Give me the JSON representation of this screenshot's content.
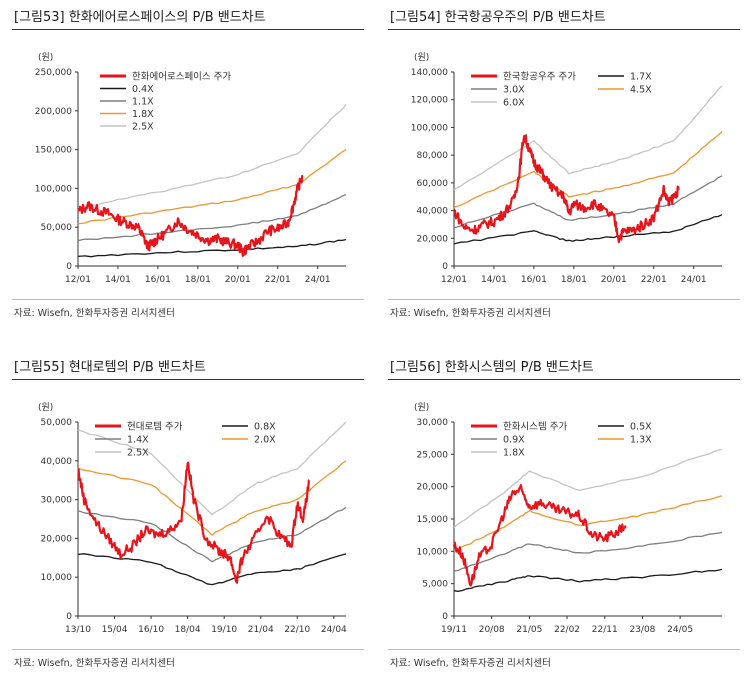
{
  "panels": [
    {
      "title": "[그림53]  한화에어로스페이스의 P/B 밴드차트",
      "source": "자료: Wisefn, 한화투자증권 리서치센터",
      "unit": "(원)"
    },
    {
      "title": "[그림54]  한국항공우주의 P/B 밴드차트",
      "source": "자료: Wisefn, 한화투자증권 리서치센터",
      "unit": "(원)"
    },
    {
      "title": "[그림55]  현대로템의 P/B 밴드차트",
      "source": "자료: Wisefn, 한화투자증권 리서치센터",
      "unit": "(원)"
    },
    {
      "title": "[그림56]  한화시스템의 P/B 밴드차트",
      "source": "자료: Wisefn, 한화투자증권 리서치센터",
      "unit": "(원)"
    }
  ],
  "colors": {
    "price": "#e8141b",
    "band_dark": "#1a1a1a",
    "band_mid": "#7f7f7f",
    "band_orange": "#f0962d",
    "band_light": "#c4c4c4"
  },
  "chart_data": [
    {
      "type": "line",
      "title": "[그림53]  한화에어로스페이스의 P/B 밴드차트",
      "ylabel": "(원)",
      "x_range": [
        "2012-01",
        "2025-06"
      ],
      "x_ticks": [
        "12/01",
        "14/01",
        "16/01",
        "18/01",
        "20/01",
        "22/01",
        "24/01"
      ],
      "ylim": [
        0,
        250000
      ],
      "y_ticks": [
        "0",
        "50,000",
        "100,000",
        "150,000",
        "200,000",
        "250,000"
      ],
      "legend_layout": "vertical",
      "series": [
        {
          "name": "한화에어로스페이스  주가",
          "role": "price",
          "x": [
            "2012-01",
            "2012-07",
            "2013-01",
            "2013-07",
            "2014-01",
            "2014-07",
            "2015-01",
            "2015-04",
            "2015-07",
            "2015-10",
            "2016-01",
            "2016-07",
            "2017-01",
            "2017-07",
            "2018-01",
            "2018-07",
            "2019-01",
            "2019-07",
            "2020-01",
            "2020-04",
            "2020-07",
            "2021-01",
            "2021-07",
            "2022-01",
            "2022-07",
            "2022-10",
            "2023-01",
            "2023-04"
          ],
          "values": [
            70000,
            78000,
            72000,
            68000,
            60000,
            55000,
            50000,
            38000,
            25000,
            30000,
            35000,
            45000,
            58000,
            47000,
            40000,
            33000,
            35000,
            30000,
            27000,
            18000,
            24000,
            32000,
            45000,
            48000,
            55000,
            75000,
            100000,
            115000
          ]
        },
        {
          "name": "0.4X",
          "role": "band_dark",
          "x": [
            "2012-01",
            "2016-01",
            "2020-01",
            "2023-01",
            "2025-06"
          ],
          "values": [
            12000,
            17000,
            21000,
            25000,
            34000
          ]
        },
        {
          "name": "1.1X",
          "role": "band_mid",
          "x": [
            "2012-01",
            "2016-01",
            "2020-01",
            "2023-01",
            "2025-06"
          ],
          "values": [
            33000,
            42000,
            52000,
            65000,
            92000
          ]
        },
        {
          "name": "1.8X",
          "role": "band_orange",
          "x": [
            "2012-01",
            "2016-01",
            "2020-01",
            "2023-01",
            "2025-06"
          ],
          "values": [
            55000,
            70000,
            85000,
            105000,
            150000
          ]
        },
        {
          "name": "2.5X",
          "role": "band_light",
          "x": [
            "2012-01",
            "2016-01",
            "2020-01",
            "2023-01",
            "2025-06"
          ],
          "values": [
            75000,
            95000,
            118000,
            145000,
            208000
          ]
        }
      ]
    },
    {
      "type": "line",
      "title": "[그림54]  한국항공우주의 P/B 밴드차트",
      "ylabel": "(원)",
      "x_range": [
        "2012-01",
        "2025-06"
      ],
      "x_ticks": [
        "12/01",
        "14/01",
        "16/01",
        "18/01",
        "20/01",
        "22/01",
        "24/01"
      ],
      "ylim": [
        0,
        140000
      ],
      "y_ticks": [
        "0",
        "20,000",
        "40,000",
        "60,000",
        "80,000",
        "100,000",
        "120,000",
        "140,000"
      ],
      "legend_layout": "two-column",
      "series": [
        {
          "name": "한국항공우주  주가",
          "role": "price",
          "x": [
            "2012-01",
            "2012-07",
            "2013-01",
            "2013-07",
            "2014-01",
            "2014-07",
            "2015-01",
            "2015-04",
            "2015-07",
            "2015-10",
            "2016-01",
            "2016-04",
            "2016-07",
            "2017-01",
            "2017-07",
            "2017-10",
            "2018-01",
            "2018-07",
            "2019-01",
            "2019-07",
            "2020-01",
            "2020-04",
            "2020-07",
            "2021-01",
            "2021-07",
            "2022-01",
            "2022-07",
            "2022-10",
            "2023-01",
            "2023-04"
          ],
          "values": [
            40000,
            28000,
            26000,
            30000,
            32000,
            38000,
            48000,
            65000,
            95000,
            85000,
            75000,
            70000,
            65000,
            55000,
            50000,
            38000,
            45000,
            42000,
            45000,
            40000,
            35000,
            20000,
            25000,
            26000,
            30000,
            35000,
            55000,
            45000,
            50000,
            55000
          ]
        },
        {
          "name": "1.7X",
          "role": "band_dark",
          "x": [
            "2012-01",
            "2016-01",
            "2017-10",
            "2020-01",
            "2023-01",
            "2025-06"
          ],
          "values": [
            16000,
            25000,
            18000,
            21000,
            25000,
            37000
          ]
        },
        {
          "name": "3.0X",
          "role": "band_mid",
          "x": [
            "2012-01",
            "2016-01",
            "2017-10",
            "2020-01",
            "2023-01",
            "2025-06"
          ],
          "values": [
            28000,
            45000,
            33000,
            37000,
            45000,
            65000
          ]
        },
        {
          "name": "4.5X",
          "role": "band_orange",
          "x": [
            "2012-01",
            "2016-01",
            "2017-10",
            "2020-01",
            "2023-01",
            "2025-06"
          ],
          "values": [
            42000,
            68000,
            50000,
            56000,
            67000,
            97000
          ]
        },
        {
          "name": "6.0X",
          "role": "band_light",
          "x": [
            "2012-01",
            "2016-01",
            "2017-10",
            "2020-01",
            "2023-01",
            "2025-06"
          ],
          "values": [
            55000,
            90000,
            67000,
            75000,
            90000,
            130000
          ]
        }
      ]
    },
    {
      "type": "line",
      "title": "[그림55]  현대로템의 P/B 밴드차트",
      "ylabel": "(원)",
      "x_range": [
        "2013-10",
        "2024-10"
      ],
      "x_ticks": [
        "13/10",
        "15/04",
        "16/10",
        "18/04",
        "19/10",
        "21/04",
        "22/10",
        "24/04"
      ],
      "ylim": [
        0,
        50000
      ],
      "y_ticks": [
        "0",
        "10,000",
        "20,000",
        "30,000",
        "40,000",
        "50,000"
      ],
      "legend_layout": "two-column",
      "series": [
        {
          "name": "현대로템  주가",
          "role": "price",
          "x": [
            "2013-10",
            "2014-01",
            "2014-07",
            "2015-01",
            "2015-07",
            "2016-01",
            "2016-07",
            "2017-01",
            "2017-07",
            "2018-01",
            "2018-04",
            "2018-07",
            "2019-01",
            "2019-07",
            "2019-10",
            "2020-01",
            "2020-04",
            "2020-07",
            "2021-01",
            "2021-07",
            "2022-01",
            "2022-07",
            "2022-10",
            "2023-01",
            "2023-04"
          ],
          "values": [
            38000,
            30000,
            24000,
            20000,
            16000,
            18000,
            22000,
            21000,
            22000,
            25000,
            40000,
            30000,
            20000,
            17000,
            16000,
            15000,
            9000,
            15000,
            20000,
            26000,
            21000,
            18000,
            29000,
            25000,
            35000
          ]
        },
        {
          "name": "0.8X",
          "role": "band_dark",
          "x": [
            "2013-10",
            "2016-10",
            "2019-04",
            "2021-01",
            "2022-10",
            "2024-10"
          ],
          "values": [
            16000,
            14000,
            8000,
            11000,
            12000,
            16000
          ]
        },
        {
          "name": "1.4X",
          "role": "band_mid",
          "x": [
            "2013-10",
            "2016-10",
            "2019-04",
            "2021-01",
            "2022-10",
            "2024-10"
          ],
          "values": [
            27000,
            24000,
            14000,
            19000,
            21000,
            28000
          ]
        },
        {
          "name": "2.0X",
          "role": "band_orange",
          "x": [
            "2013-10",
            "2016-10",
            "2019-04",
            "2021-01",
            "2022-10",
            "2024-10"
          ],
          "values": [
            38000,
            34000,
            21000,
            27000,
            30000,
            40000
          ]
        },
        {
          "name": "2.5X",
          "role": "band_light",
          "x": [
            "2013-10",
            "2016-10",
            "2019-04",
            "2021-01",
            "2022-10",
            "2024-10"
          ],
          "values": [
            48000,
            42000,
            26000,
            34000,
            38000,
            50000
          ]
        }
      ]
    },
    {
      "type": "line",
      "title": "[그림56]  한화시스템의 P/B 밴드차트",
      "ylabel": "(원)",
      "x_range": [
        "2019-11",
        "2025-03"
      ],
      "x_ticks": [
        "19/11",
        "20/08",
        "21/05",
        "22/02",
        "22/11",
        "23/08",
        "24/05"
      ],
      "ylim": [
        0,
        30000
      ],
      "y_ticks": [
        "0",
        "5,000",
        "10,000",
        "15,000",
        "20,000",
        "25,000",
        "30,000"
      ],
      "legend_layout": "two-column",
      "series": [
        {
          "name": "한화시스템  주가",
          "role": "price",
          "x": [
            "2019-11",
            "2020-01",
            "2020-03",
            "2020-05",
            "2020-08",
            "2020-11",
            "2021-01",
            "2021-03",
            "2021-05",
            "2021-08",
            "2021-11",
            "2022-02",
            "2022-05",
            "2022-08",
            "2022-11",
            "2023-02",
            "2023-04"
          ],
          "values": [
            11000,
            9500,
            5000,
            9000,
            11000,
            16000,
            19000,
            19500,
            17000,
            17500,
            16500,
            16000,
            15500,
            12500,
            12000,
            13000,
            14000
          ]
        },
        {
          "name": "0.5X",
          "role": "band_dark",
          "x": [
            "2019-11",
            "2020-11",
            "2021-05",
            "2022-05",
            "2023-08",
            "2025-03"
          ],
          "values": [
            3800,
            5300,
            6200,
            5400,
            6000,
            7200
          ]
        },
        {
          "name": "0.9X",
          "role": "band_mid",
          "x": [
            "2019-11",
            "2020-11",
            "2021-05",
            "2022-05",
            "2023-08",
            "2025-03"
          ],
          "values": [
            6900,
            9600,
            11200,
            9700,
            10800,
            12900
          ]
        },
        {
          "name": "1.3X",
          "role": "band_orange",
          "x": [
            "2019-11",
            "2020-11",
            "2021-05",
            "2022-05",
            "2023-08",
            "2025-03"
          ],
          "values": [
            10000,
            13800,
            16200,
            14000,
            15600,
            18600
          ]
        },
        {
          "name": "1.8X",
          "role": "band_light",
          "x": [
            "2019-11",
            "2020-11",
            "2021-05",
            "2022-05",
            "2023-08",
            "2025-03"
          ],
          "values": [
            13800,
            19100,
            22400,
            19400,
            21600,
            25800
          ]
        }
      ]
    }
  ]
}
